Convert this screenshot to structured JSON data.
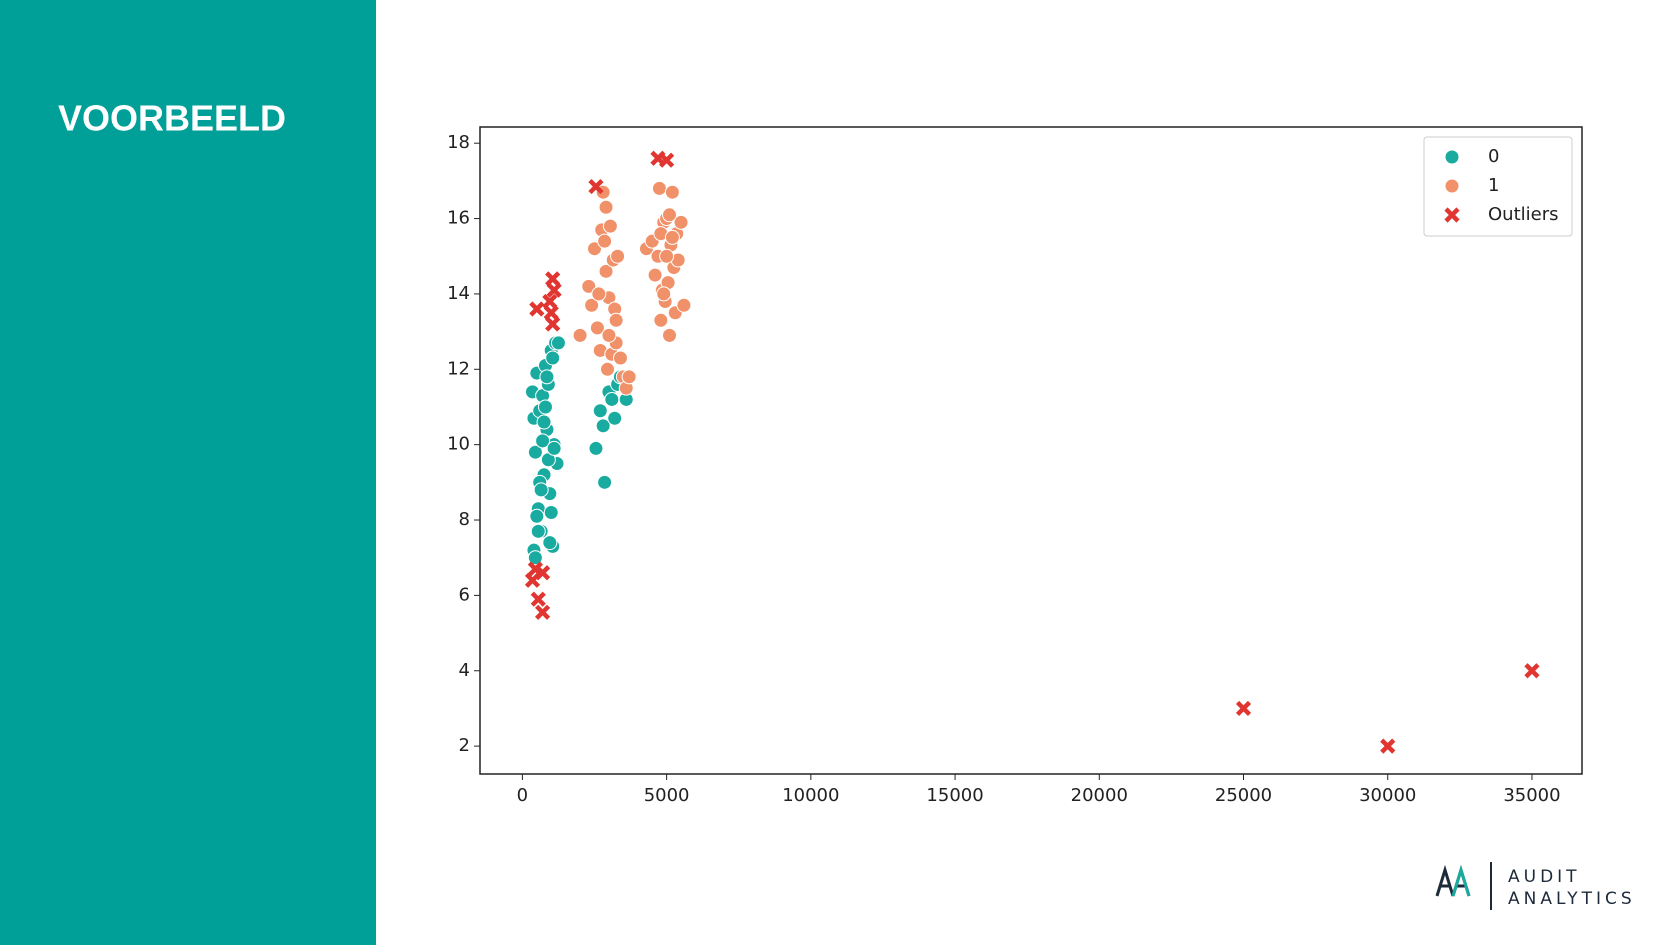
{
  "sidebar": {
    "title": "VOORBEELD"
  },
  "chart_data": {
    "type": "scatter",
    "xlim": [
      -1470,
      36735
    ],
    "ylim": [
      1.26,
      18.43
    ],
    "xticks": [
      0,
      5000,
      10000,
      15000,
      20000,
      25000,
      30000,
      35000
    ],
    "yticks": [
      2,
      4,
      6,
      8,
      10,
      12,
      14,
      16,
      18
    ],
    "legend": "upper right",
    "series": [
      {
        "name": "0",
        "color": "#1aaba0",
        "marker": "o",
        "x": [
          350,
          400,
          450,
          500,
          550,
          600,
          650,
          700,
          750,
          800,
          850,
          900,
          950,
          1000,
          1050,
          1100,
          1150,
          1200,
          1250,
          400,
          500,
          600,
          700,
          800,
          900,
          1000,
          1100,
          450,
          550,
          650,
          750,
          850,
          950,
          1050,
          2550,
          2700,
          2800,
          2850,
          3000,
          3100,
          3200,
          3300,
          3400,
          3600
        ],
        "values": [
          11.4,
          10.7,
          9.8,
          11.9,
          8.3,
          10.9,
          7.7,
          11.3,
          9.2,
          12.1,
          10.4,
          11.6,
          8.7,
          12.5,
          7.3,
          10.0,
          12.7,
          9.5,
          12.7,
          7.2,
          8.1,
          9.0,
          10.1,
          11.0,
          9.6,
          8.2,
          9.9,
          7.0,
          7.7,
          8.8,
          10.6,
          11.8,
          7.4,
          12.3,
          9.9,
          10.9,
          10.5,
          9.0,
          11.4,
          11.2,
          10.7,
          11.6,
          11.8,
          11.2
        ]
      },
      {
        "name": "1",
        "color": "#f0916a",
        "marker": "o",
        "x": [
          2000,
          2300,
          2400,
          2500,
          2600,
          2700,
          2750,
          2800,
          2900,
          2950,
          3000,
          3050,
          3100,
          3150,
          3200,
          3250,
          3300,
          3400,
          3500,
          3600,
          3700,
          2650,
          2850,
          3000,
          3250,
          2900,
          4300,
          4500,
          4600,
          4700,
          4750,
          4800,
          4850,
          4900,
          4950,
          5000,
          5050,
          5100,
          5150,
          5200,
          5250,
          5300,
          5350,
          5400,
          5500,
          5600,
          4800,
          4900,
          5000,
          5100,
          5200
        ],
        "values": [
          12.9,
          14.2,
          13.7,
          15.2,
          13.1,
          12.5,
          15.7,
          16.7,
          14.6,
          12.0,
          13.9,
          15.8,
          12.4,
          14.9,
          13.6,
          12.7,
          15.0,
          12.3,
          11.8,
          11.5,
          11.8,
          14.0,
          15.4,
          12.9,
          13.3,
          16.3,
          15.2,
          15.4,
          14.5,
          15.0,
          16.8,
          13.3,
          14.1,
          15.9,
          13.8,
          16.0,
          14.3,
          12.9,
          15.3,
          16.7,
          14.7,
          13.5,
          15.6,
          14.9,
          15.9,
          13.7,
          15.6,
          14.0,
          15.0,
          16.1,
          15.5
        ]
      },
      {
        "name": "Outliers",
        "color": "#e03530",
        "marker": "x",
        "x": [
          500,
          950,
          1050,
          1100,
          1000,
          1050,
          2550,
          4700,
          5000,
          350,
          450,
          700,
          550,
          700,
          25000,
          30000,
          35000
        ],
        "values": [
          13.6,
          13.8,
          14.4,
          14.1,
          13.5,
          13.2,
          16.85,
          17.6,
          17.55,
          6.4,
          6.7,
          6.6,
          5.9,
          5.55,
          3,
          2,
          4
        ]
      }
    ]
  },
  "logo": {
    "line1": "AUDIT",
    "line2": "ANALYTICS"
  }
}
